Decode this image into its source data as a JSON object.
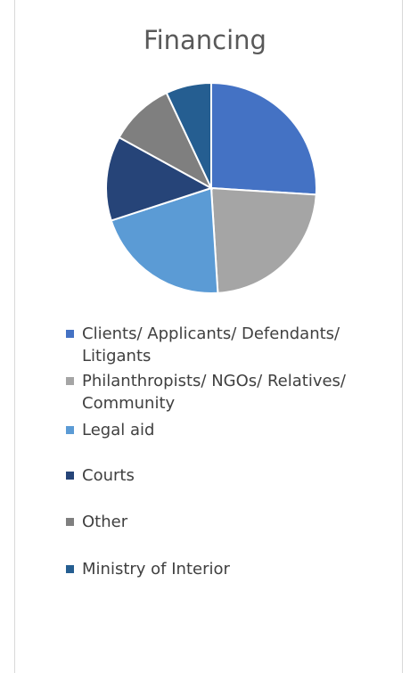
{
  "chart_data": {
    "type": "pie",
    "title": "Financing",
    "categories": [
      "Clients/ Applicants/ Defendants/ Litigants",
      "Philanthropists/ NGOs/ Relatives/ Community",
      "Legal aid",
      "Courts",
      "Other",
      "Ministry of Interior"
    ],
    "values": [
      26,
      23,
      21,
      13,
      10,
      7
    ],
    "colors": [
      "#4472c4",
      "#a5a5a5",
      "#5b9bd5",
      "#264478",
      "#7f7f7f",
      "#255e91"
    ],
    "legend": "bottom"
  }
}
